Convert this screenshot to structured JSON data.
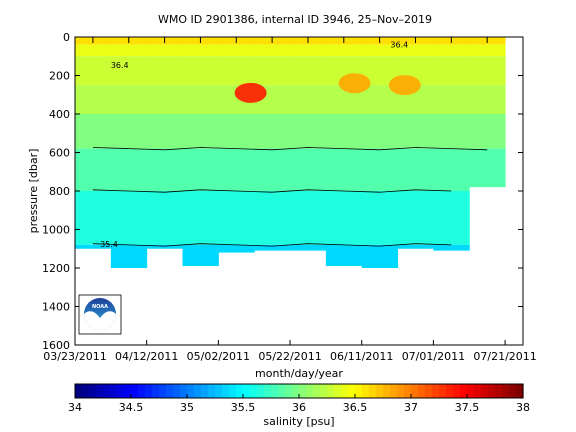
{
  "chart_data": {
    "type": "heatmap",
    "title": "WMO ID 2901386, internal ID 3946, 25–Nov–2019",
    "xlabel": "month/day/year",
    "ylabel": "pressure [dbar]",
    "colorbar_label": "salinity [psu]",
    "x_ticks": [
      "03/23/2011",
      "04/12/2011",
      "05/02/2011",
      "05/22/2011",
      "06/11/2011",
      "07/01/2011",
      "07/21/2011"
    ],
    "y_ticks": [
      "0",
      "200",
      "400",
      "600",
      "800",
      "1000",
      "1200",
      "1400",
      "1600"
    ],
    "ylim": [
      0,
      1600
    ],
    "y_reversed": true,
    "x_range_days": [
      0,
      125
    ],
    "colorbar_ticks": [
      "34",
      "34.5",
      "35",
      "35.5",
      "36",
      "36.5",
      "37",
      "37.5",
      "38"
    ],
    "clim": [
      34,
      38
    ],
    "colormap": "jet",
    "profile_days": [
      5,
      15,
      25,
      35,
      45,
      55,
      65,
      75,
      85,
      95,
      105,
      115
    ],
    "profile_max_pressure": [
      1100,
      1200,
      1100,
      1190,
      1120,
      1110,
      1110,
      1190,
      1200,
      1100,
      1110,
      780
    ],
    "salinity_layers": [
      {
        "pressure_top": 0,
        "pressure_bottom": 40,
        "salinity": 36.62
      },
      {
        "pressure_top": 40,
        "pressure_bottom": 100,
        "salinity": 36.42
      },
      {
        "pressure_top": 100,
        "pressure_bottom": 250,
        "salinity": 36.3
      },
      {
        "pressure_top": 250,
        "pressure_bottom": 400,
        "salinity": 36.2
      },
      {
        "pressure_top": 400,
        "pressure_bottom": 580,
        "salinity": 36.0
      },
      {
        "pressure_top": 580,
        "pressure_bottom": 800,
        "salinity": 35.82
      },
      {
        "pressure_top": 800,
        "pressure_bottom": 1080,
        "salinity": 35.62
      },
      {
        "pressure_top": 1080,
        "pressure_bottom": 1200,
        "salinity": 35.35
      }
    ],
    "high_salinity_patches": [
      {
        "day": 49,
        "pressure": 290,
        "salinity": 37.4
      },
      {
        "day": 78,
        "pressure": 240,
        "salinity": 36.85
      },
      {
        "day": 92,
        "pressure": 250,
        "salinity": 36.85
      }
    ],
    "contour_labels": [
      {
        "text": "35.4",
        "day": 7,
        "pressure": 1090
      },
      {
        "text": "36.4",
        "day": 10,
        "pressure": 160
      },
      {
        "text": "36.4",
        "day": 88,
        "pressure": 55
      }
    ]
  },
  "logo": {
    "text": "NOAA"
  }
}
